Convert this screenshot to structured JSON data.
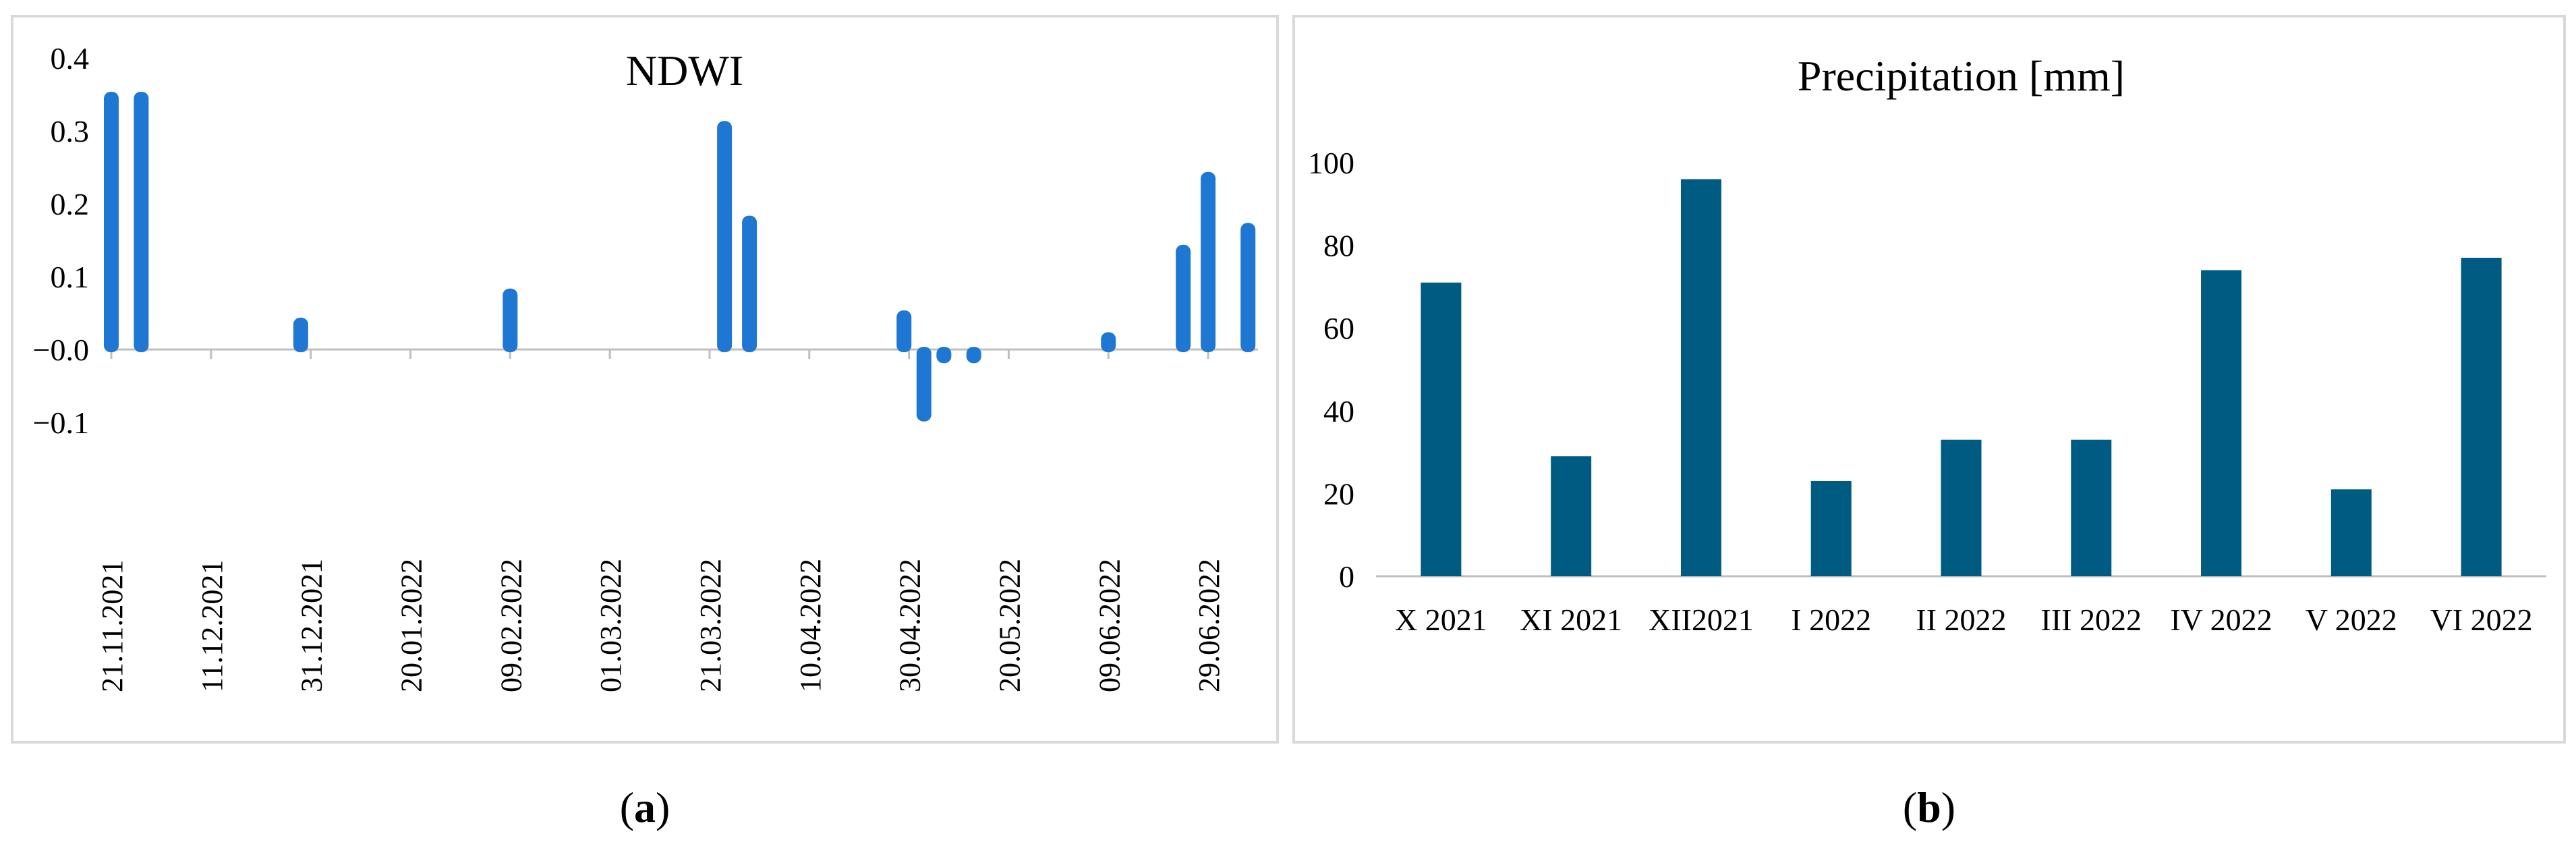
{
  "captions": {
    "a_open": "(",
    "a_letter": "a",
    "a_close": ")",
    "b_open": "(",
    "b_letter": "b",
    "b_close": ")"
  },
  "chart_data": [
    {
      "type": "bar",
      "title": "NDWI",
      "xlabel": "",
      "ylabel": "",
      "ylim": [
        -0.1,
        0.4
      ],
      "yticks": [
        -0.1,
        0.0,
        0.1,
        0.2,
        0.3,
        0.4
      ],
      "ytick_labels": [
        "−0.1",
        "−0.0",
        "0.1",
        "0.2",
        "0.3",
        "0.4"
      ],
      "xlim": [
        "2021-11-21",
        "2022-07-09"
      ],
      "xticks": [
        "21.11.2021",
        "11.12.2021",
        "31.12.2021",
        "20.01.2022",
        "09.02.2022",
        "01.03.2022",
        "21.03.2022",
        "10.04.2022",
        "30.04.2022",
        "20.05.2022",
        "09.06.2022",
        "29.06.2022"
      ],
      "x": [
        "2021-11-21",
        "2021-11-27",
        "2021-12-29",
        "2022-02-09",
        "2022-03-24",
        "2022-03-29",
        "2022-04-29",
        "2022-05-03",
        "2022-05-07",
        "2022-05-13",
        "2022-06-09",
        "2022-06-24",
        "2022-06-29",
        "2022-07-07"
      ],
      "values": [
        0.35,
        0.35,
        0.04,
        0.08,
        0.31,
        0.18,
        0.05,
        -0.095,
        -0.015,
        -0.015,
        0.02,
        0.14,
        0.24,
        0.17
      ],
      "grid": false,
      "color": "#1f77d4"
    },
    {
      "type": "bar",
      "title": "Precipitation [mm]",
      "xlabel": "",
      "ylabel": "",
      "ylim": [
        0,
        100
      ],
      "yticks": [
        0,
        20,
        40,
        60,
        80,
        100
      ],
      "categories": [
        "X 2021",
        "XI 2021",
        "XII2021",
        "I 2022",
        "II 2022",
        "III 2022",
        "IV 2022",
        "V 2022",
        "VI 2022"
      ],
      "values": [
        71,
        29,
        96,
        23,
        33,
        33,
        74,
        21,
        77
      ],
      "grid": false,
      "color": "#005b82"
    }
  ]
}
